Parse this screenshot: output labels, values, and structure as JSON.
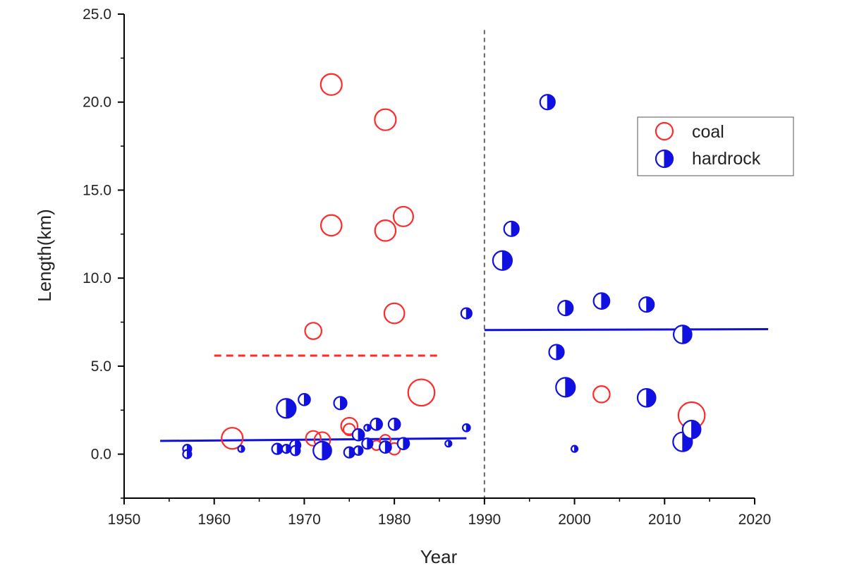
{
  "chart_data": {
    "type": "scatter",
    "xlabel": "Year",
    "ylabel": "Length(km)",
    "xlim": [
      1950,
      2020
    ],
    "ylim": [
      -2.5,
      25.0
    ],
    "xticks": [
      "1950",
      "1960",
      "1970",
      "1980",
      "1990",
      "2000",
      "2010",
      "2020"
    ],
    "yticks": [
      "0.0",
      "5.0",
      "10.0",
      "15.0",
      "20.0",
      "25.0"
    ],
    "legend": {
      "placement": "top-right",
      "entries": [
        "coal",
        "hardrock"
      ]
    },
    "colors": {
      "coal": "#ff2a2a",
      "hardrock": "#1010e0",
      "divider": "#666666"
    },
    "divider_x": 1990,
    "series": [
      {
        "name": "coal",
        "marker": "open-circle",
        "points": [
          {
            "x": 1973,
            "y": 21.0,
            "s": 1.0
          },
          {
            "x": 1979,
            "y": 19.0,
            "s": 1.0
          },
          {
            "x": 1973,
            "y": 13.0,
            "s": 0.98
          },
          {
            "x": 1979,
            "y": 12.7,
            "s": 0.98
          },
          {
            "x": 1981,
            "y": 13.5,
            "s": 0.93
          },
          {
            "x": 1980,
            "y": 8.0,
            "s": 0.95
          },
          {
            "x": 1971,
            "y": 7.0,
            "s": 0.78
          },
          {
            "x": 1983,
            "y": 3.5,
            "s": 1.25
          },
          {
            "x": 1962,
            "y": 0.9,
            "s": 1.0
          },
          {
            "x": 1971,
            "y": 0.9,
            "s": 0.7
          },
          {
            "x": 1972,
            "y": 0.8,
            "s": 0.75
          },
          {
            "x": 1972,
            "y": 0.1,
            "s": 0.62
          },
          {
            "x": 1975,
            "y": 1.6,
            "s": 0.78
          },
          {
            "x": 1975,
            "y": 1.4,
            "s": 0.55
          },
          {
            "x": 1979,
            "y": 0.8,
            "s": 0.5
          },
          {
            "x": 1978,
            "y": 0.5,
            "s": 0.45
          },
          {
            "x": 1980,
            "y": 0.3,
            "s": 0.55
          },
          {
            "x": 2003,
            "y": 3.4,
            "s": 0.78
          },
          {
            "x": 2013,
            "y": 2.2,
            "s": 1.25
          }
        ]
      },
      {
        "name": "hardrock",
        "marker": "half-filled-circle",
        "points": [
          {
            "x": 1957,
            "y": 0.3,
            "s": 0.4
          },
          {
            "x": 1957,
            "y": 0.0,
            "s": 0.4
          },
          {
            "x": 1963,
            "y": 0.3,
            "s": 0.3
          },
          {
            "x": 1967,
            "y": 0.3,
            "s": 0.5
          },
          {
            "x": 1968,
            "y": 2.6,
            "s": 0.9
          },
          {
            "x": 1968,
            "y": 0.3,
            "s": 0.4
          },
          {
            "x": 1969,
            "y": 0.5,
            "s": 0.5
          },
          {
            "x": 1969,
            "y": 0.2,
            "s": 0.45
          },
          {
            "x": 1970,
            "y": 3.1,
            "s": 0.55
          },
          {
            "x": 1972,
            "y": 0.2,
            "s": 0.85
          },
          {
            "x": 1974,
            "y": 2.9,
            "s": 0.6
          },
          {
            "x": 1975,
            "y": 0.1,
            "s": 0.5
          },
          {
            "x": 1976,
            "y": 1.1,
            "s": 0.55
          },
          {
            "x": 1976,
            "y": 0.2,
            "s": 0.42
          },
          {
            "x": 1977,
            "y": 1.5,
            "s": 0.3
          },
          {
            "x": 1977,
            "y": 0.6,
            "s": 0.5
          },
          {
            "x": 1978,
            "y": 1.7,
            "s": 0.55
          },
          {
            "x": 1979,
            "y": 0.4,
            "s": 0.55
          },
          {
            "x": 1980,
            "y": 1.7,
            "s": 0.55
          },
          {
            "x": 1981,
            "y": 0.6,
            "s": 0.55
          },
          {
            "x": 1986,
            "y": 0.6,
            "s": 0.3
          },
          {
            "x": 1988,
            "y": 1.5,
            "s": 0.35
          },
          {
            "x": 1988,
            "y": 8.0,
            "s": 0.5
          },
          {
            "x": 1992,
            "y": 11.0,
            "s": 0.9
          },
          {
            "x": 1993,
            "y": 12.8,
            "s": 0.7
          },
          {
            "x": 1997,
            "y": 20.0,
            "s": 0.7
          },
          {
            "x": 1998,
            "y": 5.8,
            "s": 0.7
          },
          {
            "x": 1999,
            "y": 8.3,
            "s": 0.7
          },
          {
            "x": 1999,
            "y": 3.8,
            "s": 0.9
          },
          {
            "x": 2000,
            "y": 0.3,
            "s": 0.3
          },
          {
            "x": 2003,
            "y": 8.7,
            "s": 0.75
          },
          {
            "x": 2008,
            "y": 8.5,
            "s": 0.7
          },
          {
            "x": 2008,
            "y": 3.2,
            "s": 0.85
          },
          {
            "x": 2012,
            "y": 6.8,
            "s": 0.85
          },
          {
            "x": 2012,
            "y": 0.7,
            "s": 0.9
          },
          {
            "x": 2013,
            "y": 1.4,
            "s": 0.85
          }
        ]
      }
    ],
    "trend_lines": [
      {
        "series": "coal",
        "style": "dashed",
        "x": [
          1960,
          1985
        ],
        "y": [
          5.6,
          5.6
        ]
      },
      {
        "series": "hardrock",
        "style": "solid",
        "x": [
          1954,
          1988
        ],
        "y": [
          0.75,
          0.9
        ]
      },
      {
        "series": "hardrock",
        "style": "solid",
        "x": [
          1990,
          2021.5
        ],
        "y": [
          7.05,
          7.1
        ]
      }
    ]
  }
}
